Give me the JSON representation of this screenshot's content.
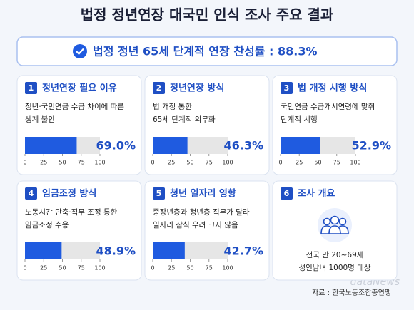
{
  "header": {
    "title": "법정 정년연장 대국민 인식 조사 주요 결과"
  },
  "highlight": {
    "text": "법정 정년 65세 단계적 연장 찬성률 : 88.3%"
  },
  "axis": {
    "lim": [
      0,
      100
    ],
    "ticks": [
      0,
      25,
      50,
      75,
      100
    ]
  },
  "cards": [
    {
      "number": "1",
      "title": "정년연장 필요 이유",
      "desc": [
        "정년·국민연금 수급 차이에 따른",
        "생계 불안"
      ],
      "value": 69.0,
      "value_label": "69.0%"
    },
    {
      "number": "2",
      "title": "정년연장 방식",
      "desc": [
        "법 개정 통한",
        "65세 단계적 의무화"
      ],
      "value": 46.3,
      "value_label": "46.3%"
    },
    {
      "number": "3",
      "title": "법 개정 시행 방식",
      "desc": [
        "국민연금 수급개시연령에 맞춰",
        "단계적 시행"
      ],
      "value": 52.9,
      "value_label": "52.9%"
    },
    {
      "number": "4",
      "title": "임금조정 방식",
      "desc": [
        "노동시간 단축·직무 조정 통한",
        "임금조정 수용"
      ],
      "value": 48.9,
      "value_label": "48.9%"
    },
    {
      "number": "5",
      "title": "청년 일자리 영향",
      "desc": [
        "중장년층과 청년층 직무가 달라",
        "일자리 잠식 우려 크지 않음"
      ],
      "value": 42.7,
      "value_label": "42.7%"
    }
  ],
  "info": {
    "number": "6",
    "title": "조사 개요",
    "lines": [
      "전국 만 20~69세",
      "성인남녀 1000명 대상"
    ]
  },
  "source": "자료 : 한국노동조합총연맹",
  "watermark": "dataNews"
}
